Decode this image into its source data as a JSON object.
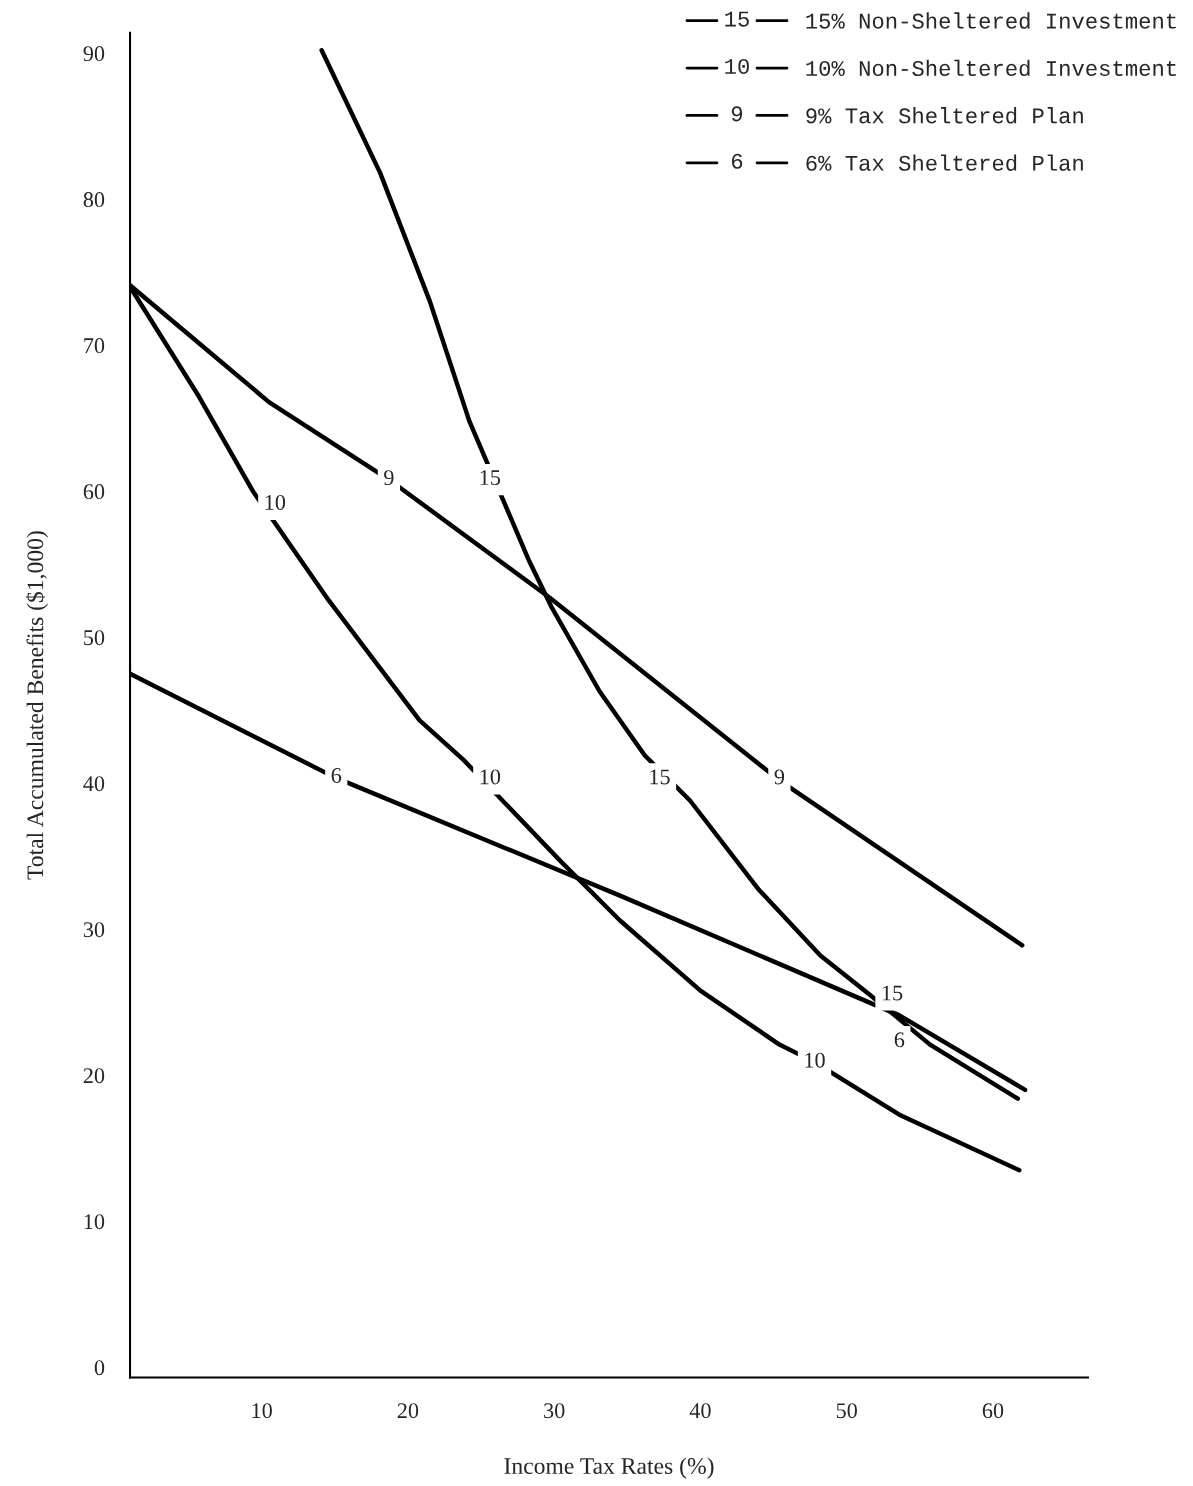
{
  "chart_data": {
    "type": "line",
    "xlabel": "Income Tax Rates (%)",
    "ylabel": "Total Accumulated Benefits ($1,000)",
    "xlim": [
      1,
      66.5
    ],
    "ylim": [
      -0.7,
      91.4
    ],
    "xticks": [
      10,
      20,
      30,
      40,
      50,
      60
    ],
    "yticks": [
      0,
      10,
      20,
      30,
      40,
      50,
      60,
      70,
      80,
      90
    ],
    "grid": false,
    "legend": "top right",
    "marker": "none",
    "line_style": "solid",
    "series": [
      {
        "name": "15% Non-Sheltered Investment",
        "color": "#000000",
        "x": [
          14.1,
          18.1,
          21.5,
          24.2,
          28.3,
          29.8,
          33.1,
          36.2,
          39.3,
          44,
          48.2,
          51.6,
          55.7,
          61.7
        ],
        "values": [
          90.2,
          81.8,
          73,
          64.8,
          55.2,
          52.1,
          46.3,
          41.9,
          38.8,
          32.7,
          28.2,
          25.5,
          22.1,
          18.4
        ]
      },
      {
        "name": "10% Non-Sheltered Investment",
        "color": "#000000",
        "x": [
          1,
          5.7,
          9.4,
          14.6,
          20.8,
          23.8,
          30.4,
          34.5,
          40,
          45.4,
          47.8,
          53.6,
          61.8
        ],
        "values": [
          74,
          66.5,
          60,
          52.5,
          44.3,
          41.6,
          34.7,
          30.6,
          25.8,
          22.1,
          20.9,
          17.3,
          13.5
        ]
      },
      {
        "name": "9% Tax Sheltered Plan",
        "color": "#000000",
        "x": [
          1,
          10.5,
          18.7,
          29.7,
          45.4,
          62
        ],
        "values": [
          74.1,
          66.1,
          60.8,
          52.7,
          40.2,
          28.9
        ]
      },
      {
        "name": "6% Tax Sheltered Plan",
        "color": "#000000",
        "x": [
          1,
          15,
          34.5,
          53.6,
          62.2
        ],
        "values": [
          47.5,
          40.4,
          32.3,
          24.1,
          19
        ]
      }
    ],
    "annotations": [
      {
        "text": "15",
        "x": 25.6,
        "y": 60.8
      },
      {
        "text": "15",
        "x": 37.2,
        "y": 40.3
      },
      {
        "text": "15",
        "x": 53.1,
        "y": 25.5
      },
      {
        "text": "10",
        "x": 10.9,
        "y": 59.1
      },
      {
        "text": "10",
        "x": 25.6,
        "y": 40.3
      },
      {
        "text": "10",
        "x": 47.8,
        "y": 20.9
      },
      {
        "text": "9",
        "x": 18.7,
        "y": 60.8
      },
      {
        "text": "9",
        "x": 45.4,
        "y": 40.3
      },
      {
        "text": "6",
        "x": 15.1,
        "y": 40.4
      },
      {
        "text": "6",
        "x": 53.6,
        "y": 22.3
      }
    ]
  }
}
